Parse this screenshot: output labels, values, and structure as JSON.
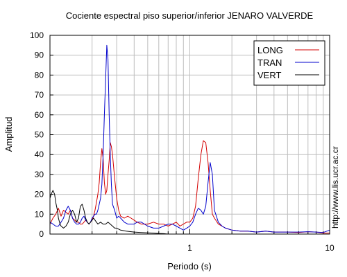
{
  "chart_data": {
    "type": "line",
    "title": "Cociente espectral piso superior/inferior  JENARO VALVERDE",
    "xlabel": "Periodo (s)",
    "ylabel": "Amplitud",
    "x_scale": "log",
    "xlim": [
      0.1,
      10
    ],
    "ylim": [
      0,
      100
    ],
    "x_tick_labels": [
      {
        "value": 1,
        "label": "1"
      },
      {
        "value": 10,
        "label": "10"
      }
    ],
    "y_ticks": [
      0,
      10,
      20,
      30,
      40,
      50,
      60,
      70,
      80,
      90,
      100
    ],
    "grid": true,
    "legend_position": "top-right",
    "side_text": "http://www.lis.ucr.ac.cr",
    "series": [
      {
        "name": "LONG",
        "color": "#d40000",
        "x": [
          0.1,
          0.105,
          0.11,
          0.115,
          0.12,
          0.125,
          0.13,
          0.135,
          0.14,
          0.145,
          0.15,
          0.155,
          0.16,
          0.165,
          0.17,
          0.175,
          0.18,
          0.185,
          0.19,
          0.195,
          0.2,
          0.205,
          0.21,
          0.215,
          0.22,
          0.225,
          0.23,
          0.235,
          0.24,
          0.245,
          0.25,
          0.255,
          0.26,
          0.265,
          0.27,
          0.275,
          0.28,
          0.29,
          0.3,
          0.31,
          0.32,
          0.34,
          0.36,
          0.38,
          0.4,
          0.42,
          0.45,
          0.5,
          0.55,
          0.6,
          0.65,
          0.7,
          0.75,
          0.8,
          0.85,
          0.9,
          0.95,
          1.0,
          1.05,
          1.1,
          1.15,
          1.2,
          1.25,
          1.3,
          1.35,
          1.4,
          1.45,
          1.5,
          1.6,
          1.7,
          1.8,
          2.0,
          2.3,
          2.6,
          3.0,
          3.5,
          4.0,
          5.0,
          6.0,
          7.0,
          8.0,
          9.0,
          10.0
        ],
        "y": [
          5,
          8,
          10,
          13,
          9,
          12,
          11,
          10,
          12,
          8,
          7,
          6,
          6,
          5,
          5,
          6,
          7,
          6,
          5,
          6,
          7,
          9,
          12,
          16,
          20,
          26,
          36,
          43,
          38,
          26,
          20,
          22,
          30,
          37,
          46,
          44,
          40,
          28,
          18,
          12,
          9,
          8,
          9,
          8,
          7,
          6,
          5,
          5,
          6,
          5,
          5,
          4,
          5,
          6,
          4,
          5,
          6,
          6,
          8,
          14,
          28,
          40,
          47,
          46,
          36,
          22,
          10,
          8,
          5,
          4,
          3,
          2,
          1.5,
          1.5,
          1,
          1.5,
          1,
          1,
          0.8,
          1.2,
          1,
          0.5,
          0.5
        ]
      },
      {
        "name": "TRAN",
        "color": "#0000cc",
        "x": [
          0.1,
          0.105,
          0.11,
          0.115,
          0.12,
          0.125,
          0.13,
          0.135,
          0.14,
          0.145,
          0.15,
          0.155,
          0.16,
          0.165,
          0.17,
          0.175,
          0.18,
          0.185,
          0.19,
          0.195,
          0.2,
          0.205,
          0.21,
          0.215,
          0.22,
          0.225,
          0.23,
          0.235,
          0.24,
          0.245,
          0.25,
          0.255,
          0.26,
          0.265,
          0.27,
          0.275,
          0.28,
          0.29,
          0.3,
          0.31,
          0.32,
          0.34,
          0.36,
          0.38,
          0.4,
          0.42,
          0.45,
          0.5,
          0.55,
          0.6,
          0.65,
          0.7,
          0.75,
          0.8,
          0.85,
          0.9,
          0.95,
          1.0,
          1.05,
          1.1,
          1.15,
          1.2,
          1.25,
          1.3,
          1.35,
          1.4,
          1.45,
          1.5,
          1.6,
          1.7,
          1.8,
          2.0,
          2.3,
          2.6,
          3.0,
          3.5,
          4.0,
          5.0,
          6.0,
          7.0,
          8.0,
          9.0,
          10.0
        ],
        "y": [
          6,
          5,
          4,
          4,
          6,
          8,
          12,
          14,
          12,
          8,
          6,
          5,
          5,
          6,
          8,
          9,
          7,
          6,
          5,
          6,
          8,
          9,
          10,
          10,
          12,
          15,
          18,
          25,
          40,
          60,
          78,
          95,
          88,
          60,
          40,
          25,
          15,
          12,
          8,
          9,
          8,
          6,
          5,
          5,
          5,
          6,
          6,
          4,
          3,
          3,
          4,
          5,
          5,
          4,
          3,
          2,
          3,
          4,
          6,
          10,
          13,
          12,
          10,
          14,
          26,
          36,
          30,
          12,
          6,
          4,
          3,
          2,
          1.5,
          1.5,
          1,
          1.5,
          1,
          1,
          1,
          1.2,
          1,
          0.8,
          2
        ]
      },
      {
        "name": "VERT",
        "color": "#000000",
        "x": [
          0.1,
          0.102,
          0.105,
          0.108,
          0.11,
          0.113,
          0.115,
          0.118,
          0.12,
          0.125,
          0.13,
          0.135,
          0.14,
          0.145,
          0.15,
          0.155,
          0.16,
          0.165,
          0.17,
          0.175,
          0.18,
          0.185,
          0.19,
          0.195,
          0.2,
          0.205,
          0.21,
          0.215,
          0.22,
          0.23,
          0.24,
          0.25,
          0.26,
          0.27,
          0.28,
          0.29,
          0.3,
          0.32,
          0.35,
          0.4,
          0.45,
          0.5,
          0.55,
          0.6,
          0.65,
          0.7
        ],
        "y": [
          18,
          20,
          22,
          20,
          16,
          12,
          8,
          5,
          4,
          3,
          4,
          6,
          10,
          12,
          10,
          6,
          8,
          14,
          15,
          12,
          8,
          6,
          5,
          6,
          7,
          8,
          7,
          6,
          5,
          6,
          5,
          5,
          6,
          5,
          4,
          3,
          3,
          2,
          1.5,
          1,
          0.8,
          0.6,
          0.5,
          0.3,
          0.2,
          0
        ]
      }
    ]
  }
}
